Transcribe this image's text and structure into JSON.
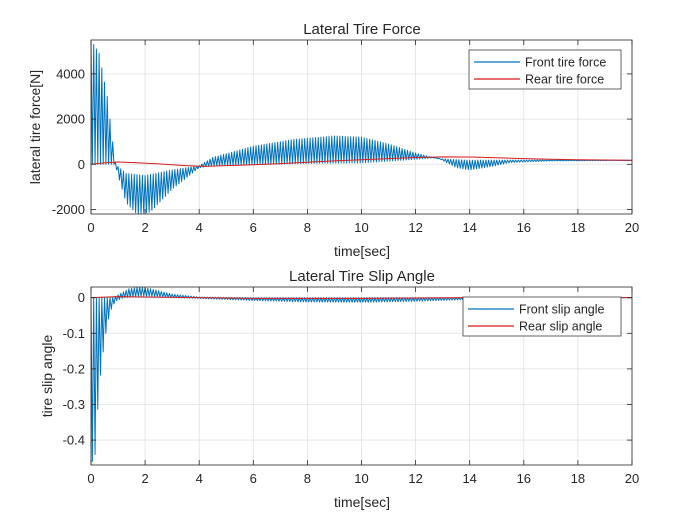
{
  "chart_data": [
    {
      "type": "line",
      "title": "Lateral Tire Force",
      "xlabel": "time[sec]",
      "ylabel": "lateral tire force[N]",
      "xlim": [
        0,
        20
      ],
      "ylim": [
        -2200,
        5500
      ],
      "xticks": [
        0,
        2,
        4,
        6,
        8,
        10,
        12,
        14,
        16,
        18,
        20
      ],
      "yticks": [
        -2000,
        0,
        2000,
        4000
      ],
      "xtick_labels": [
        "0",
        "2",
        "4",
        "6",
        "8",
        "10",
        "12",
        "14",
        "16",
        "18",
        "20"
      ],
      "ytick_labels": [
        "-2000",
        "0",
        "2000",
        "4000"
      ],
      "grid": true,
      "legend_position": "top-right",
      "series": [
        {
          "name": "Front tire force",
          "color": "#0072BD",
          "style": "oscillating",
          "oscillation_period": 0.1,
          "upper": [
            [
              0,
              5500
            ],
            [
              0.3,
              4900
            ],
            [
              0.6,
              3000
            ],
            [
              0.8,
              1000
            ],
            [
              0.9,
              100
            ],
            [
              1.0,
              -100
            ],
            [
              1.3,
              -400
            ],
            [
              2.0,
              -500
            ],
            [
              3.0,
              -250
            ],
            [
              4.0,
              -60
            ],
            [
              4.5,
              300
            ],
            [
              6.0,
              800
            ],
            [
              7.5,
              1100
            ],
            [
              9.0,
              1250
            ],
            [
              10.0,
              1200
            ],
            [
              11.0,
              900
            ],
            [
              12.0,
              500
            ],
            [
              12.8,
              250
            ],
            [
              14.0,
              180
            ],
            [
              16.0,
              190
            ],
            [
              20.0,
              180
            ]
          ],
          "lower": [
            [
              0,
              0
            ],
            [
              0.6,
              0
            ],
            [
              0.9,
              0
            ],
            [
              1.0,
              -500
            ],
            [
              1.3,
              -1700
            ],
            [
              1.7,
              -2200
            ],
            [
              2.2,
              -2100
            ],
            [
              3.0,
              -1100
            ],
            [
              4.0,
              -150
            ],
            [
              4.5,
              -60
            ],
            [
              6.0,
              -20
            ],
            [
              8.0,
              40
            ],
            [
              10.0,
              60
            ],
            [
              12.0,
              220
            ],
            [
              12.8,
              300
            ],
            [
              13.5,
              -150
            ],
            [
              14.0,
              -250
            ],
            [
              14.8,
              -100
            ],
            [
              15.5,
              80
            ],
            [
              17.0,
              150
            ],
            [
              20.0,
              170
            ]
          ]
        },
        {
          "name": "Rear tire force",
          "color": "#D81B1B",
          "style": "line",
          "points": [
            [
              0,
              0
            ],
            [
              0.5,
              60
            ],
            [
              1.0,
              100
            ],
            [
              1.5,
              80
            ],
            [
              2.5,
              20
            ],
            [
              3.5,
              -60
            ],
            [
              4.2,
              -90
            ],
            [
              5.0,
              -60
            ],
            [
              6.0,
              -20
            ],
            [
              7.0,
              30
            ],
            [
              8.0,
              90
            ],
            [
              9.0,
              150
            ],
            [
              10.0,
              200
            ],
            [
              11.0,
              250
            ],
            [
              12.0,
              300
            ],
            [
              13.0,
              330
            ],
            [
              14.0,
              320
            ],
            [
              15.0,
              290
            ],
            [
              16.0,
              250
            ],
            [
              17.0,
              220
            ],
            [
              18.0,
              200
            ],
            [
              19.0,
              190
            ],
            [
              20.0,
              180
            ]
          ]
        }
      ]
    },
    {
      "type": "line",
      "title": "Lateral Tire Slip Angle",
      "xlabel": "time[sec]",
      "ylabel": "tire slip angle",
      "xlim": [
        0,
        20
      ],
      "ylim": [
        -0.47,
        0.03
      ],
      "xticks": [
        0,
        2,
        4,
        6,
        8,
        10,
        12,
        14,
        16,
        18,
        20
      ],
      "yticks": [
        -0.4,
        -0.3,
        -0.2,
        -0.1,
        0
      ],
      "xtick_labels": [
        "0",
        "2",
        "4",
        "6",
        "8",
        "10",
        "12",
        "14",
        "16",
        "18",
        "20"
      ],
      "ytick_labels": [
        "-0.4",
        "-0.3",
        "-0.2",
        "-0.1",
        "0"
      ],
      "grid": true,
      "legend_position": "top-right",
      "series": [
        {
          "name": "Front slip angle",
          "color": "#0072BD",
          "style": "oscillating",
          "oscillation_period": 0.1,
          "upper": [
            [
              0,
              0
            ],
            [
              0.8,
              0
            ],
            [
              1.0,
              0.008
            ],
            [
              1.4,
              0.025
            ],
            [
              1.8,
              0.03
            ],
            [
              2.2,
              0.025
            ],
            [
              3.0,
              0.01
            ],
            [
              4.0,
              0.002
            ],
            [
              6.0,
              0.0
            ],
            [
              20.0,
              0.0
            ]
          ],
          "lower": [
            [
              0,
              -0.47
            ],
            [
              0.15,
              -0.44
            ],
            [
              0.3,
              -0.25
            ],
            [
              0.5,
              -0.12
            ],
            [
              0.7,
              -0.04
            ],
            [
              0.9,
              -0.01
            ],
            [
              1.2,
              0.0
            ],
            [
              2.0,
              0.005
            ],
            [
              3.0,
              0.0
            ],
            [
              4.0,
              -0.002
            ],
            [
              6.0,
              -0.008
            ],
            [
              8.0,
              -0.012
            ],
            [
              10.0,
              -0.013
            ],
            [
              12.0,
              -0.01
            ],
            [
              14.0,
              -0.005
            ],
            [
              15.0,
              -0.003
            ],
            [
              16.0,
              0.0
            ],
            [
              20.0,
              0.0
            ]
          ]
        },
        {
          "name": "Rear slip angle",
          "color": "#D81B1B",
          "style": "line",
          "points": [
            [
              0,
              0
            ],
            [
              1.0,
              0.003
            ],
            [
              2.0,
              0.002
            ],
            [
              4.0,
              0.0
            ],
            [
              6.0,
              -0.002
            ],
            [
              8.0,
              -0.002
            ],
            [
              10.0,
              -0.002
            ],
            [
              12.0,
              -0.001
            ],
            [
              14.0,
              0.0
            ],
            [
              20.0,
              0.0
            ]
          ]
        }
      ]
    }
  ]
}
